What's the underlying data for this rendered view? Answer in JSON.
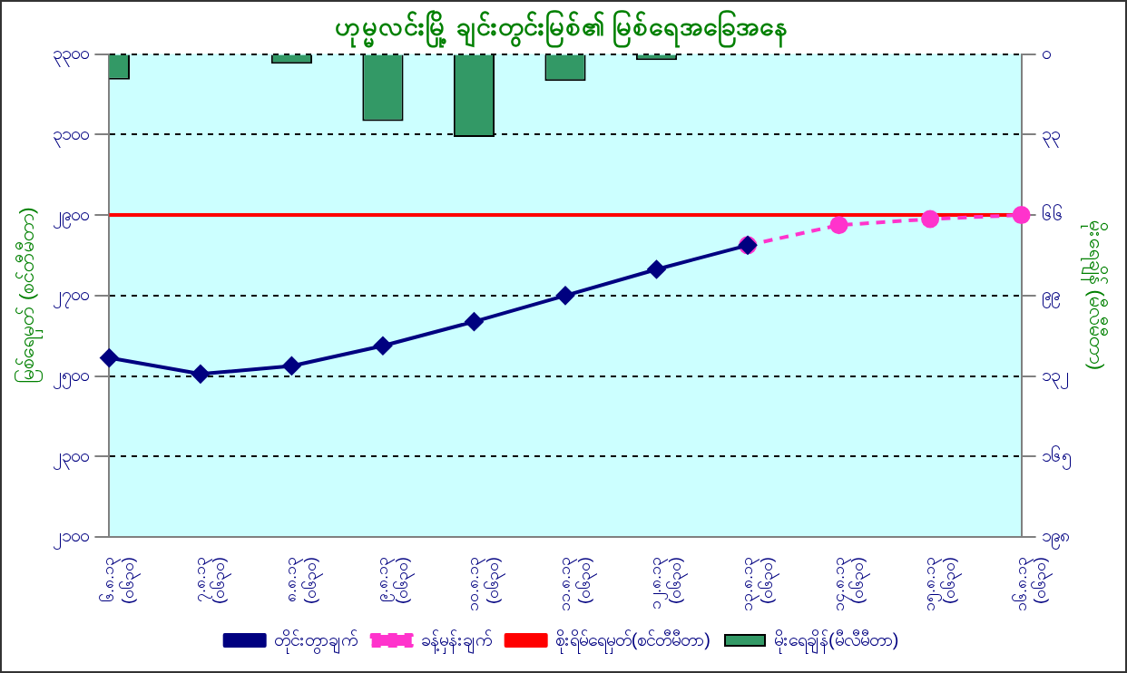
{
  "chart_data": {
    "type": "line",
    "title": "ဟုမ္မလင်းမြို့ ချင်းတွင်းမြစ်၏ မြစ်ရေအခြေအနေ",
    "ylabel": "မြစ်ရေမှတ် (စင်တီမီတာ)",
    "y2label": "မိုးရေချိန် (မီလီမီတာ)",
    "categories": [
      "၆.၈.၁၃ (၀၆၃၀)",
      "၇.၈.၁၃ (၀၆၃၀)",
      "၈.၈.၁၃ (၀၆၃၀)",
      "၉.၈.၁၃ (၀၆၃၀)",
      "၁၀.၈.၁၃ (၀၆၃၀)",
      "၁၁.၈.၁၃ (၀၆၃၀)",
      "၁၂.၈.၁၃ (၀၆၃၀)",
      "၁၃.၈.၁၃ (၀၆၃၀)",
      "၁၄.၈.၁၃ (၀၆၃၀)",
      "၁၅.၈.၁၃ (၀၆၃၀)",
      "၁၆.၈.၁၃ (၀၆၃၀)"
    ],
    "series": [
      {
        "name": "မိုးရေချိန်(မီလီမီတာ)",
        "type": "bar",
        "axis": "y2",
        "color": "#339966",
        "values": [
          10.5,
          0,
          4,
          27.5,
          34,
          11,
          2.5,
          null,
          null,
          null,
          null
        ]
      },
      {
        "name": "တိုင်းတွာချက်",
        "color": "#000080",
        "marker": "diamond",
        "line_style": "solid",
        "values": [
          2545,
          2505,
          2525,
          2575,
          2635,
          2700,
          2765,
          2825,
          null,
          null,
          null
        ]
      },
      {
        "name": "ခန့်မှန်းချက်",
        "color": "#ff33cc",
        "marker": "circle",
        "line_style": "dashed",
        "values": [
          null,
          null,
          null,
          null,
          null,
          null,
          null,
          2825,
          2875,
          2890,
          2900
        ]
      },
      {
        "name": "စိုးရိမ်ရေမှတ်(စင်တီမီတာ)",
        "color": "#ff0000",
        "marker": "none",
        "line_style": "solid",
        "values": [
          2900,
          2900,
          2900,
          2900,
          2900,
          2900,
          2900,
          2900,
          2900,
          2900,
          2900
        ]
      }
    ],
    "ylim": [
      2100,
      3300
    ],
    "yticks": [
      {
        "value": 2100,
        "label": "၂၁၀၀"
      },
      {
        "value": 2300,
        "label": "၂၃၀၀"
      },
      {
        "value": 2500,
        "label": "၂၅၀၀"
      },
      {
        "value": 2700,
        "label": "၂၇၀၀"
      },
      {
        "value": 2900,
        "label": "၂၉၀၀"
      },
      {
        "value": 3100,
        "label": "၃၁၀၀"
      },
      {
        "value": 3300,
        "label": "၃၃၀၀"
      }
    ],
    "y2lim": [
      198,
      0
    ],
    "y2ticks": [
      {
        "value": 0,
        "label": "၀"
      },
      {
        "value": 33,
        "label": "၃၃"
      },
      {
        "value": 66,
        "label": "၆၆"
      },
      {
        "value": 99,
        "label": "၉၉"
      },
      {
        "value": 132,
        "label": "၁၃၂"
      },
      {
        "value": 165,
        "label": "၁၆၅"
      },
      {
        "value": 198,
        "label": "၁၉၈"
      }
    ],
    "grid": "y",
    "legend": "bottom"
  }
}
